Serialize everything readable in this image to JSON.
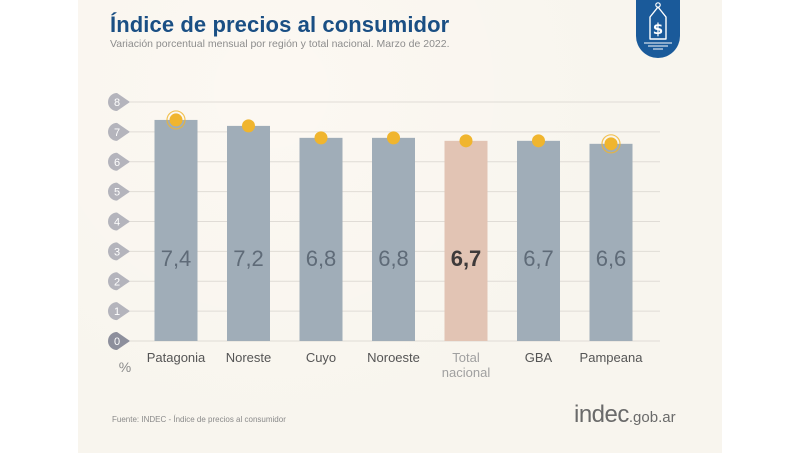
{
  "header": {
    "title": "Índice de precios al consumidor",
    "subtitle": "Variación porcentual mensual por región y total nacional. Marzo de 2022."
  },
  "badge": {
    "icon": "price-tag-dollar-icon",
    "color": "#1a5a9a"
  },
  "footer": {
    "source": "Fuente: INDEC - Índice de precios al consumidor",
    "logo_main": "indec",
    "logo_domain": ".gob.ar"
  },
  "colors": {
    "bar": "#a0adb8",
    "bar_highlight": "#e2c4b4",
    "dot": "#f0b52e",
    "tick_bubble": "#b4b4bc",
    "tick_bubble_zero": "#8d8f9c",
    "grid": "#e0dcd6",
    "value_text": "#5f6b78",
    "value_text_highlight": "#3e3a3a",
    "title": "#1a4f84"
  },
  "chart_data": {
    "type": "bar",
    "title": "Índice de precios al consumidor",
    "subtitle": "Variación porcentual mensual por región y total nacional. Marzo de 2022.",
    "xlabel": "",
    "ylabel": "%",
    "ylim": [
      0,
      8
    ],
    "yticks": [
      "0",
      "1",
      "2",
      "3",
      "4",
      "5",
      "6",
      "7",
      "8"
    ],
    "grid": true,
    "categories": [
      "Patagonia",
      "Noreste",
      "Cuyo",
      "Noroeste",
      "Total nacional",
      "GBA",
      "Pampeana"
    ],
    "category_lines": [
      [
        "Patagonia"
      ],
      [
        "Noreste"
      ],
      [
        "Cuyo"
      ],
      [
        "Noroeste"
      ],
      [
        "Total",
        "nacional"
      ],
      [
        "GBA"
      ],
      [
        "Pampeana"
      ]
    ],
    "values": [
      7.4,
      7.2,
      6.8,
      6.8,
      6.7,
      6.7,
      6.6
    ],
    "value_labels": [
      "7,4",
      "7,2",
      "6,8",
      "6,8",
      "6,7",
      "6,7",
      "6,6"
    ],
    "highlight_index": 4,
    "ringed_markers": [
      0,
      6
    ]
  }
}
